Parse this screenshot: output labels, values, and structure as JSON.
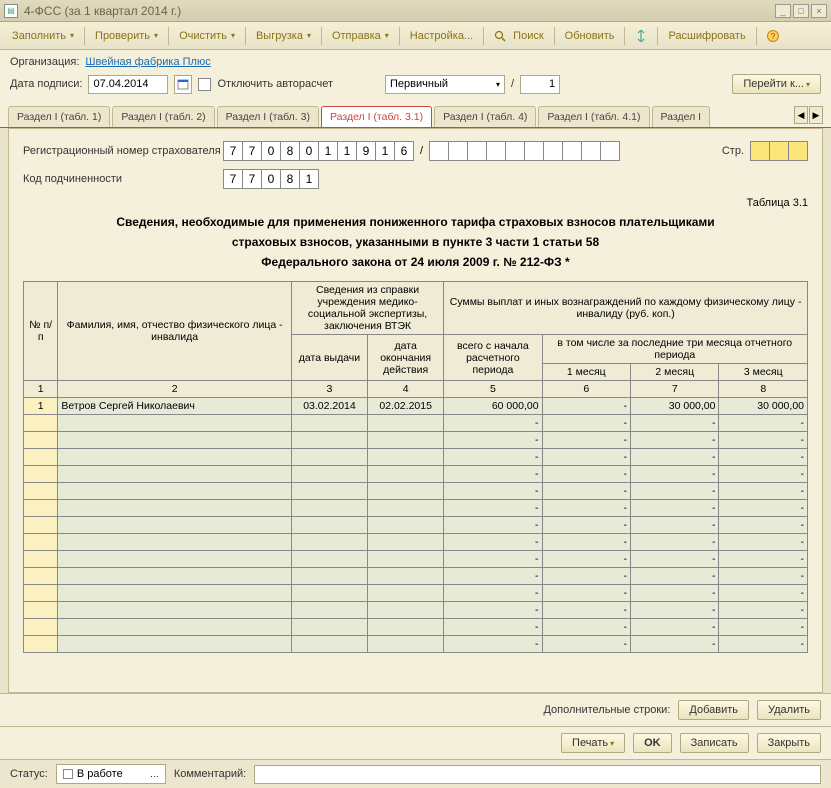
{
  "window": {
    "title": "4-ФСС (за 1 квартал 2014 г.)"
  },
  "toolbar": {
    "fill": "Заполнить",
    "check": "Проверить",
    "clear": "Очистить",
    "export": "Выгрузка",
    "send": "Отправка",
    "settings": "Настройка...",
    "search": "Поиск",
    "refresh": "Обновить",
    "decrypt": "Расшифровать"
  },
  "org": {
    "label": "Организация:",
    "value": "Швейная фабрика Плюс"
  },
  "sign": {
    "label": "Дата подписи:",
    "date": "07.04.2014",
    "disable_auto": "Отключить авторасчет"
  },
  "doc_type": {
    "value": "Первичный",
    "sep": "/",
    "num": "1",
    "goto": "Перейти к..."
  },
  "tabs": [
    "Раздел I (табл. 1)",
    "Раздел I (табл. 2)",
    "Раздел I (табл. 3)",
    "Раздел I (табл. 3.1)",
    "Раздел I (табл. 4)",
    "Раздел I (табл. 4.1)",
    "Раздел I"
  ],
  "active_tab": 3,
  "form": {
    "reg_label": "Регистрационный номер страхователя",
    "reg_digits": [
      "7",
      "7",
      "0",
      "8",
      "0",
      "1",
      "1",
      "9",
      "1",
      "6"
    ],
    "reg_ext": [
      "",
      "",
      "",
      "",
      "",
      "",
      "",
      "",
      "",
      ""
    ],
    "sub_label": "Код подчиненности",
    "sub_digits": [
      "7",
      "7",
      "0",
      "8",
      "1"
    ],
    "page_label": "Стр.",
    "page_digits": [
      "",
      "",
      ""
    ],
    "table_label": "Таблица 3.1",
    "title1": "Сведения, необходимые для применения пониженного тарифа  страховых взносов плательщиками",
    "title2": "страховых взносов, указанными в пункте 3 части 1 статьи  58",
    "title3": "Федерального закона от 24 июля 2009 г. № 212-ФЗ *"
  },
  "table": {
    "headers": {
      "num": "№ п/п",
      "fio": "Фамилия, имя, отчество физического лица - инвалида",
      "spravka": "Сведения из справки учреждения медико-социальной экспертизы, заключения ВТЭК",
      "date_issue": "дата выдачи",
      "date_end": "дата окончания действия",
      "sums": "Суммы выплат и иных вознаграждений по каждому физическому лицу - инвалиду (руб. коп.)",
      "total": "всего с начала расчетного периода",
      "last3": "в том числе за последние три месяца отчетного периода",
      "m1": "1 месяц",
      "m2": "2 месяц",
      "m3": "3 месяц"
    },
    "colnums": [
      "1",
      "2",
      "3",
      "4",
      "5",
      "6",
      "7",
      "8"
    ],
    "rows": [
      {
        "n": "1",
        "fio": "Ветров Сергей Николаевич",
        "d1": "03.02.2014",
        "d2": "02.02.2015",
        "total": "60 000,00",
        "m1": "-",
        "m2": "30 000,00",
        "m3": "30 000,00"
      }
    ],
    "empty_rows": 14,
    "bg_data": "#e8ead8",
    "bg_num": "#faf0c0"
  },
  "footer": {
    "extra_label": "Дополнительные строки:",
    "add": "Добавить",
    "del": "Удалить",
    "print": "Печать",
    "ok": "OK",
    "save": "Записать",
    "close": "Закрыть"
  },
  "status": {
    "label": "Статус:",
    "value": "В работе",
    "comment_label": "Комментарий:",
    "comment": ""
  }
}
